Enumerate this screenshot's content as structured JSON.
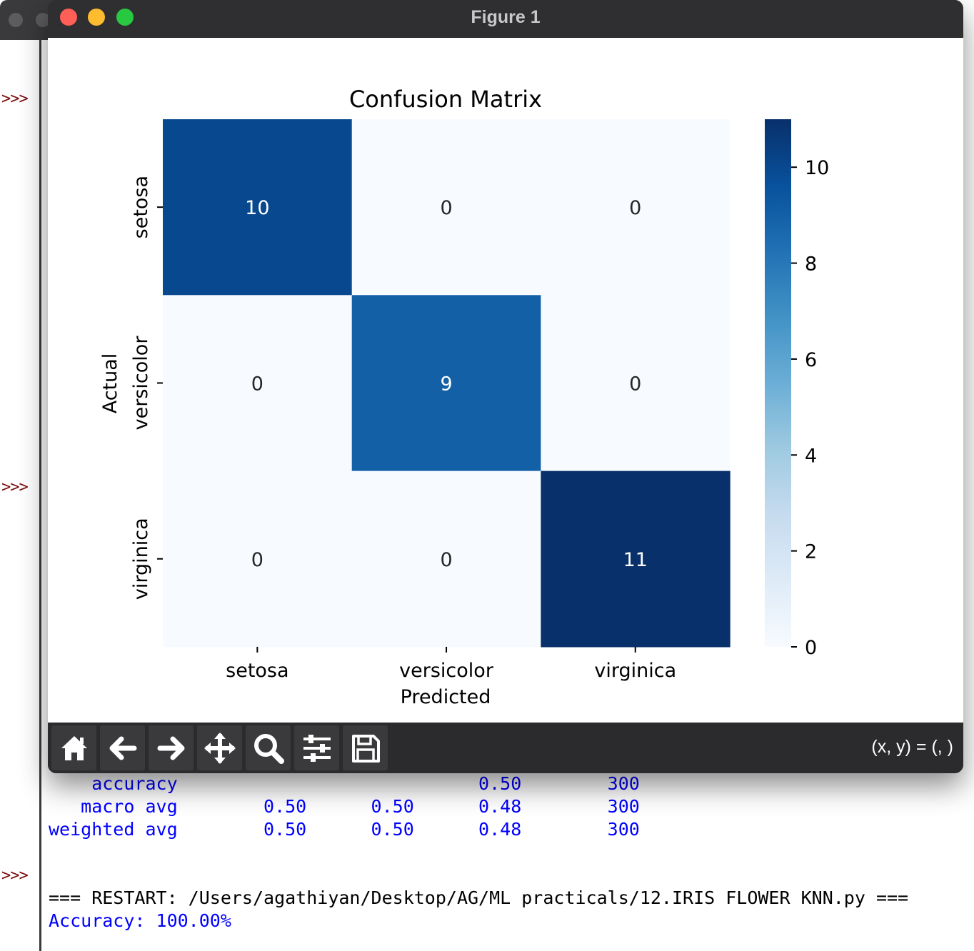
{
  "figure": {
    "title": "Figure 1",
    "coords_readout": "(x, y) = (, )",
    "toolbar": [
      {
        "name": "home",
        "icon": "home-icon"
      },
      {
        "name": "back",
        "icon": "arrow-left-icon"
      },
      {
        "name": "forward",
        "icon": "arrow-right-icon"
      },
      {
        "name": "pan",
        "icon": "move-icon"
      },
      {
        "name": "zoom",
        "icon": "magnifier-icon"
      },
      {
        "name": "configure-subplots",
        "icon": "sliders-icon"
      },
      {
        "name": "save",
        "icon": "floppy-disk-icon"
      }
    ],
    "traffic_colors": {
      "close": "#ff5f57",
      "minimize": "#febc2e",
      "zoom": "#28c840"
    }
  },
  "shell": {
    "prompt": ">>>",
    "report_rows": [
      {
        "label": "accuracy",
        "precision": "",
        "recall": "",
        "f1": "0.50",
        "support": "300"
      },
      {
        "label": "macro avg",
        "precision": "0.50",
        "recall": "0.50",
        "f1": "0.48",
        "support": "300"
      },
      {
        "label": "weighted avg",
        "precision": "0.50",
        "recall": "0.50",
        "f1": "0.48",
        "support": "300"
      }
    ],
    "restart_line": "=== RESTART: /Users/agathiyan/Desktop/AG/ML practicals/12.IRIS FLOWER KNN.py ===",
    "accuracy_line": "Accuracy: 100.00%"
  },
  "chart_data": {
    "type": "heatmap",
    "title": "Confusion Matrix",
    "xlabel": "Predicted",
    "ylabel": "Actual",
    "x_categories": [
      "setosa",
      "versicolor",
      "virginica"
    ],
    "y_categories": [
      "setosa",
      "versicolor",
      "virginica"
    ],
    "values": [
      [
        10,
        0,
        0
      ],
      [
        0,
        9,
        0
      ],
      [
        0,
        0,
        11
      ]
    ],
    "colormap": "Blues",
    "colorbar": {
      "range": [
        0,
        11
      ],
      "ticks": [
        0,
        2,
        4,
        6,
        8,
        10
      ]
    },
    "annotations": true
  }
}
